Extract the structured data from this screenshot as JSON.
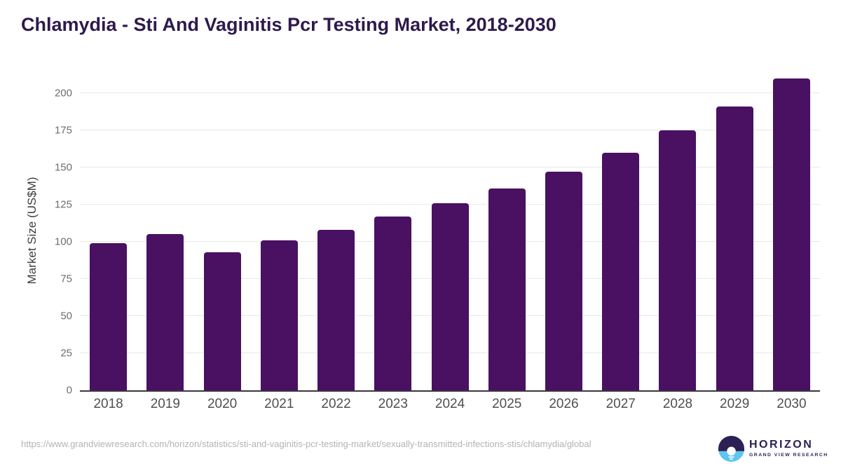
{
  "title": "Chlamydia - Sti And Vaginitis Pcr Testing Market, 2018-2030",
  "chart_data": {
    "type": "bar",
    "title": "Chlamydia - Sti And Vaginitis Pcr Testing Market, 2018-2030",
    "categories": [
      "2018",
      "2019",
      "2020",
      "2021",
      "2022",
      "2023",
      "2024",
      "2025",
      "2026",
      "2027",
      "2028",
      "2029",
      "2030"
    ],
    "values": [
      99,
      105,
      93,
      101,
      108,
      117,
      126,
      136,
      147,
      160,
      175,
      191,
      210
    ],
    "xlabel": "",
    "ylabel": "Market Size (US$M)",
    "yticks": [
      0,
      25,
      50,
      75,
      100,
      125,
      150,
      175,
      200
    ],
    "ylim": [
      0,
      215
    ],
    "grid": "horizontal",
    "legend": "none",
    "bar_color": "#4a1061"
  },
  "footer": {
    "source_url": "https://www.grandviewresearch.com/horizon/statistics/sti-and-vaginitis-pcr-testing-market/sexually-transmitted-infections-stis/chlamydia/global",
    "logo": {
      "name": "HORIZON",
      "tagline": "GRAND VIEW RESEARCH"
    }
  },
  "colors": {
    "background": "#ffffff",
    "title_color": "#2e1a4d",
    "bar_color": "#4a1061",
    "grid": "#e8e8e8",
    "baseline": "#38383d",
    "ytick_text": "#6d6d6d",
    "xtick_text": "#4f4f4f",
    "axis_label": "#3d3d3d",
    "source_text": "#b3b3b3",
    "logo_dark": "#2d2053",
    "logo_blue": "#5ec6ef"
  }
}
